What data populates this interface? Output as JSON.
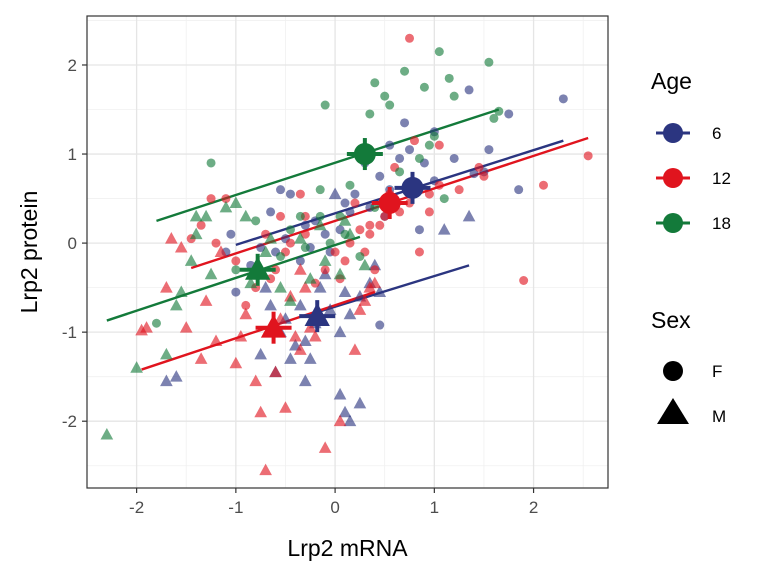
{
  "chart_data": {
    "type": "scatter",
    "xlabel": "Lrp2 mRNA",
    "ylabel": "Lrp2 protein",
    "xlim": [
      -2.5,
      2.75
    ],
    "ylim": [
      -2.75,
      2.55
    ],
    "x_ticks": [
      -2,
      -1,
      0,
      1,
      2
    ],
    "y_ticks": [
      -2,
      -1,
      0,
      1,
      2
    ],
    "x_tick_labels": [
      "-2",
      "-1",
      "0",
      "1",
      "2"
    ],
    "y_tick_labels": [
      "-2",
      "-1",
      "0",
      "1",
      "2"
    ],
    "grid": true,
    "legend_position": "right",
    "legends": [
      {
        "title": "Age",
        "items": [
          {
            "label": "6",
            "color": "#2B3580"
          },
          {
            "label": "12",
            "color": "#E0141E"
          },
          {
            "label": "18",
            "color": "#137A3A"
          }
        ]
      },
      {
        "title": "Sex",
        "items": [
          {
            "label": "F",
            "shape": "circle"
          },
          {
            "label": "M",
            "shape": "triangle"
          }
        ]
      }
    ],
    "series": [
      {
        "age": "6",
        "sex": "F",
        "color": "#2B3580",
        "shape": "circle",
        "points": [
          [
            2.3,
            1.62
          ],
          [
            1.85,
            0.6
          ],
          [
            1.75,
            1.45
          ],
          [
            1.35,
            1.72
          ],
          [
            1.55,
            1.05
          ],
          [
            1.4,
            0.78
          ],
          [
            1.2,
            0.95
          ],
          [
            1.0,
            1.25
          ],
          [
            1.0,
            0.7
          ],
          [
            0.9,
            0.9
          ],
          [
            0.85,
            0.15
          ],
          [
            0.7,
            1.35
          ],
          [
            0.65,
            0.95
          ],
          [
            0.55,
            0.6
          ],
          [
            0.45,
            0.75
          ],
          [
            0.35,
            0.4
          ],
          [
            0.3,
            0.9
          ],
          [
            0.2,
            0.55
          ],
          [
            0.1,
            0.45
          ],
          [
            0.05,
            0.15
          ],
          [
            -0.05,
            -0.1
          ],
          [
            -0.1,
            0.1
          ],
          [
            -0.2,
            0.25
          ],
          [
            -0.25,
            -0.05
          ],
          [
            -0.3,
            0.2
          ],
          [
            -0.35,
            -0.2
          ],
          [
            -0.45,
            0.55
          ],
          [
            -0.55,
            0.6
          ],
          [
            -0.6,
            -0.1
          ],
          [
            -0.65,
            0.35
          ],
          [
            -0.75,
            -0.05
          ],
          [
            -0.85,
            -0.25
          ],
          [
            -1.0,
            -0.55
          ],
          [
            -1.05,
            0.1
          ],
          [
            -1.1,
            -0.1
          ],
          [
            -0.5,
            0.05
          ],
          [
            0.15,
            0.35
          ],
          [
            0.55,
            1.1
          ],
          [
            0.75,
            1.05
          ],
          [
            0.45,
            -0.92
          ],
          [
            0.5,
            0.3
          ],
          [
            1.5,
            0.8
          ]
        ]
      },
      {
        "age": "6",
        "sex": "M",
        "color": "#2B3580",
        "shape": "triangle",
        "points": [
          [
            1.35,
            0.3
          ],
          [
            1.1,
            0.15
          ],
          [
            0.45,
            -0.55
          ],
          [
            0.4,
            -0.25
          ],
          [
            0.35,
            -0.45
          ],
          [
            0.25,
            -0.6
          ],
          [
            0.15,
            -0.8
          ],
          [
            0.1,
            -0.55
          ],
          [
            0.05,
            -1.0
          ],
          [
            0.0,
            0.55
          ],
          [
            -0.05,
            -0.75
          ],
          [
            -0.1,
            -0.35
          ],
          [
            -0.15,
            -0.5
          ],
          [
            -0.2,
            -0.9
          ],
          [
            -0.25,
            -1.3
          ],
          [
            -0.3,
            -1.1
          ],
          [
            -0.35,
            -0.7
          ],
          [
            -0.4,
            -1.15
          ],
          [
            -0.45,
            -1.3
          ],
          [
            -0.5,
            -0.85
          ],
          [
            -0.55,
            -1.0
          ],
          [
            -0.6,
            -1.45
          ],
          [
            -0.65,
            -0.7
          ],
          [
            -0.7,
            -0.5
          ],
          [
            -0.75,
            -1.25
          ],
          [
            -1.6,
            -1.5
          ],
          [
            -1.7,
            -1.55
          ],
          [
            0.05,
            -1.7
          ],
          [
            0.1,
            -1.9
          ],
          [
            0.15,
            -2.0
          ],
          [
            0.25,
            -1.8
          ],
          [
            -0.3,
            -1.55
          ]
        ]
      },
      {
        "age": "12",
        "sex": "F",
        "color": "#E0141E",
        "shape": "circle",
        "points": [
          [
            0.75,
            2.3
          ],
          [
            2.55,
            0.98
          ],
          [
            2.1,
            0.65
          ],
          [
            1.9,
            -0.42
          ],
          [
            1.5,
            0.75
          ],
          [
            1.45,
            0.85
          ],
          [
            1.25,
            0.6
          ],
          [
            1.05,
            0.65
          ],
          [
            1.05,
            1.1
          ],
          [
            0.95,
            0.55
          ],
          [
            0.8,
            1.15
          ],
          [
            0.75,
            0.45
          ],
          [
            0.65,
            0.35
          ],
          [
            0.6,
            0.85
          ],
          [
            0.55,
            0.55
          ],
          [
            0.5,
            0.3
          ],
          [
            0.45,
            0.2
          ],
          [
            0.4,
            -0.3
          ],
          [
            0.35,
            0.1
          ],
          [
            0.3,
            -0.1
          ],
          [
            0.25,
            0.15
          ],
          [
            0.2,
            0.45
          ],
          [
            0.15,
            0.0
          ],
          [
            0.1,
            -0.2
          ],
          [
            0.05,
            -0.4
          ],
          [
            0.0,
            -0.1
          ],
          [
            -0.1,
            -0.3
          ],
          [
            -0.2,
            -0.45
          ],
          [
            -0.3,
            0.1
          ],
          [
            -0.35,
            0.55
          ],
          [
            -0.45,
            0.0
          ],
          [
            -0.55,
            0.3
          ],
          [
            -0.6,
            -0.3
          ],
          [
            -0.65,
            -0.4
          ],
          [
            -0.7,
            0.1
          ],
          [
            -0.8,
            -0.5
          ],
          [
            -0.9,
            -0.7
          ],
          [
            -1.0,
            -0.2
          ],
          [
            -1.1,
            0.5
          ],
          [
            -1.2,
            0.0
          ],
          [
            -1.25,
            0.5
          ],
          [
            -1.35,
            0.2
          ],
          [
            -1.45,
            0.05
          ],
          [
            -0.5,
            -0.1
          ],
          [
            0.85,
            -0.1
          ],
          [
            0.35,
            0.2
          ],
          [
            0.95,
            0.35
          ],
          [
            -0.3,
            0.3
          ]
        ]
      },
      {
        "age": "12",
        "sex": "M",
        "color": "#E0141E",
        "shape": "triangle",
        "points": [
          [
            -1.65,
            0.05
          ],
          [
            -1.55,
            -0.05
          ],
          [
            -1.5,
            -0.95
          ],
          [
            -1.9,
            -0.95
          ],
          [
            -1.95,
            -0.98
          ],
          [
            -1.35,
            -1.3
          ],
          [
            -1.2,
            -1.1
          ],
          [
            -1.0,
            -1.35
          ],
          [
            -0.95,
            -1.05
          ],
          [
            -0.9,
            -0.8
          ],
          [
            -0.8,
            -1.55
          ],
          [
            -0.75,
            -1.9
          ],
          [
            -0.7,
            -2.55
          ],
          [
            -0.65,
            -1.0
          ],
          [
            -0.6,
            -1.45
          ],
          [
            -0.55,
            -0.85
          ],
          [
            -0.5,
            -1.85
          ],
          [
            -0.45,
            -0.6
          ],
          [
            -0.4,
            -1.05
          ],
          [
            -0.35,
            -0.3
          ],
          [
            -0.3,
            -0.5
          ],
          [
            -0.25,
            -0.95
          ],
          [
            -0.1,
            -2.3
          ],
          [
            0.05,
            -2.0
          ],
          [
            0.2,
            -1.2
          ],
          [
            0.25,
            -0.75
          ],
          [
            0.3,
            -0.65
          ],
          [
            0.35,
            -0.5
          ],
          [
            0.4,
            -0.45
          ],
          [
            -1.15,
            -0.1
          ],
          [
            -1.3,
            -0.65
          ],
          [
            -0.35,
            -1.2
          ],
          [
            -0.2,
            -1.05
          ],
          [
            -1.7,
            -0.5
          ]
        ]
      },
      {
        "age": "18",
        "sex": "F",
        "color": "#137A3A",
        "shape": "circle",
        "points": [
          [
            1.05,
            2.15
          ],
          [
            1.55,
            2.03
          ],
          [
            1.15,
            1.85
          ],
          [
            0.7,
            1.93
          ],
          [
            0.4,
            1.8
          ],
          [
            0.5,
            1.65
          ],
          [
            0.55,
            1.55
          ],
          [
            0.9,
            1.75
          ],
          [
            1.2,
            1.65
          ],
          [
            1.65,
            1.48
          ],
          [
            1.6,
            1.4
          ],
          [
            -0.1,
            1.55
          ],
          [
            0.35,
            1.45
          ],
          [
            1.0,
            1.2
          ],
          [
            0.95,
            1.1
          ],
          [
            0.85,
            0.95
          ],
          [
            0.65,
            0.8
          ],
          [
            0.6,
            0.45
          ],
          [
            0.15,
            0.65
          ],
          [
            -0.15,
            0.6
          ],
          [
            -0.35,
            0.3
          ],
          [
            -0.45,
            0.15
          ],
          [
            -1.25,
            0.9
          ],
          [
            -0.8,
            0.25
          ],
          [
            -0.15,
            0.3
          ],
          [
            -0.05,
            0.0
          ],
          [
            0.1,
            0.1
          ],
          [
            -0.55,
            -0.15
          ],
          [
            1.1,
            0.5
          ],
          [
            0.4,
            0.4
          ],
          [
            -1.8,
            -0.9
          ],
          [
            -1.0,
            -0.3
          ],
          [
            -0.3,
            -0.05
          ],
          [
            0.05,
            0.3
          ],
          [
            0.25,
            -0.15
          ]
        ]
      },
      {
        "age": "18",
        "sex": "M",
        "color": "#137A3A",
        "shape": "triangle",
        "points": [
          [
            -2.3,
            -2.15
          ],
          [
            -2.0,
            -1.4
          ],
          [
            -1.7,
            -1.25
          ],
          [
            -1.6,
            -0.7
          ],
          [
            -1.55,
            -0.55
          ],
          [
            -1.45,
            -0.2
          ],
          [
            -1.4,
            0.1
          ],
          [
            -1.3,
            0.3
          ],
          [
            -1.1,
            0.4
          ],
          [
            -1.0,
            0.45
          ],
          [
            -0.9,
            0.3
          ],
          [
            -0.75,
            -0.3
          ],
          [
            -0.7,
            -0.1
          ],
          [
            -0.65,
            0.05
          ],
          [
            -0.55,
            -0.5
          ],
          [
            -0.45,
            -0.65
          ],
          [
            -0.35,
            0.05
          ],
          [
            -0.25,
            -0.4
          ],
          [
            -0.15,
            0.2
          ],
          [
            -0.1,
            -0.2
          ],
          [
            0.05,
            -0.35
          ],
          [
            0.1,
            0.25
          ],
          [
            0.15,
            0.1
          ],
          [
            0.3,
            -0.25
          ],
          [
            -1.25,
            -0.35
          ],
          [
            -1.4,
            0.3
          ],
          [
            -0.85,
            -0.45
          ]
        ]
      }
    ],
    "means": [
      {
        "age": "6",
        "sex": "F",
        "x": 0.78,
        "y": 0.62
      },
      {
        "age": "6",
        "sex": "M",
        "x": -0.18,
        "y": -0.82
      },
      {
        "age": "12",
        "sex": "F",
        "x": 0.55,
        "y": 0.45
      },
      {
        "age": "12",
        "sex": "M",
        "x": -0.62,
        "y": -0.95
      },
      {
        "age": "18",
        "sex": "F",
        "x": 0.3,
        "y": 1.0
      },
      {
        "age": "18",
        "sex": "M",
        "x": -0.78,
        "y": -0.3
      }
    ],
    "fit_lines": [
      {
        "age": "6",
        "sex": "F",
        "x": [
          -1.0,
          2.3
        ],
        "y": [
          -0.02,
          1.15
        ]
      },
      {
        "age": "6",
        "sex": "M",
        "x": [
          -0.25,
          1.35
        ],
        "y": [
          -0.8,
          -0.25
        ]
      },
      {
        "age": "12",
        "sex": "F",
        "x": [
          -1.45,
          2.55
        ],
        "y": [
          -0.28,
          1.18
        ]
      },
      {
        "age": "12",
        "sex": "M",
        "x": [
          -1.95,
          0.4
        ],
        "y": [
          -1.42,
          -0.55
        ]
      },
      {
        "age": "18",
        "sex": "F",
        "x": [
          -1.8,
          1.65
        ],
        "y": [
          0.25,
          1.5
        ]
      },
      {
        "age": "18",
        "sex": "M",
        "x": [
          -2.3,
          0.25
        ],
        "y": [
          -0.87,
          0.07
        ]
      }
    ]
  }
}
